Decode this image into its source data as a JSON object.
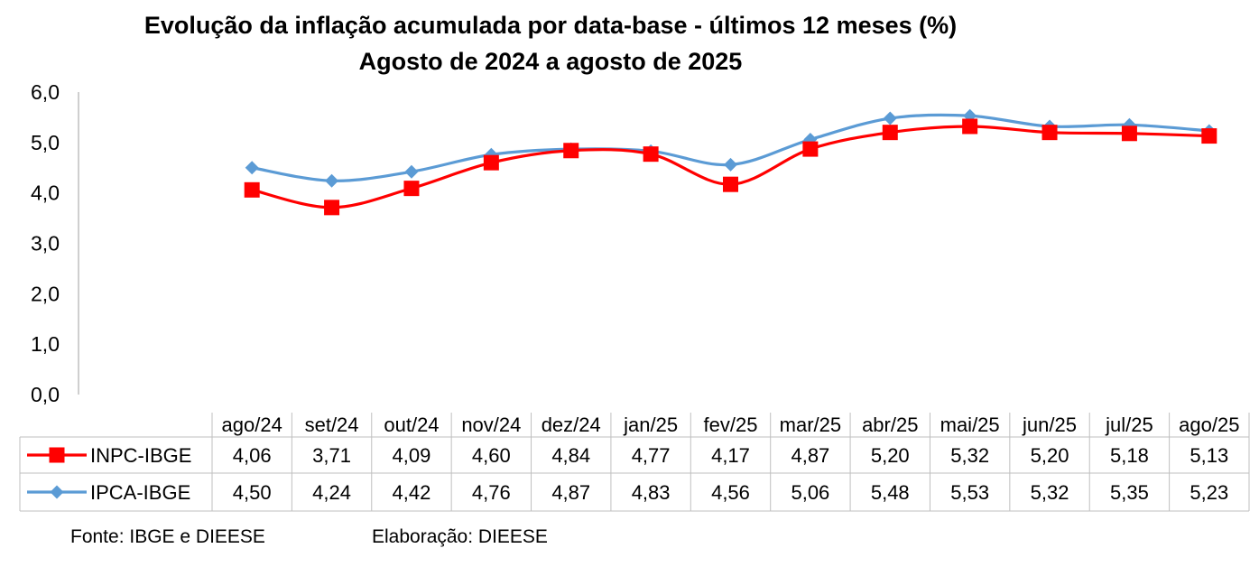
{
  "title": "Evolução da inflação acumulada por data-base - últimos 12 meses (%)",
  "subtitle": "Agosto de 2024 a agosto de 2025",
  "footer": {
    "source": "Fonte: IBGE e DIEESE",
    "elaboration": "Elaboração: DIEESE"
  },
  "chart_data": {
    "type": "line",
    "categories": [
      "ago/24",
      "set/24",
      "out/24",
      "nov/24",
      "dez/24",
      "jan/25",
      "fev/25",
      "mar/25",
      "abr/25",
      "mai/25",
      "jun/25",
      "jul/25",
      "ago/25"
    ],
    "yticks": [
      "0,0",
      "1,0",
      "2,0",
      "3,0",
      "4,0",
      "5,0",
      "6,0"
    ],
    "ylim": [
      0,
      6
    ],
    "grid": false,
    "legend": "data-table",
    "series": [
      {
        "name": "INPC-IBGE",
        "color": "#ff0000",
        "marker": "square",
        "values": [
          4.06,
          3.71,
          4.09,
          4.6,
          4.84,
          4.77,
          4.17,
          4.87,
          5.2,
          5.32,
          5.2,
          5.18,
          5.13
        ],
        "labels": [
          "4,06",
          "3,71",
          "4,09",
          "4,60",
          "4,84",
          "4,77",
          "4,17",
          "4,87",
          "5,20",
          "5,32",
          "5,20",
          "5,18",
          "5,13"
        ]
      },
      {
        "name": "IPCA-IBGE",
        "color": "#5b9bd5",
        "marker": "diamond",
        "values": [
          4.5,
          4.24,
          4.42,
          4.76,
          4.87,
          4.83,
          4.56,
          5.06,
          5.48,
          5.53,
          5.32,
          5.35,
          5.23
        ],
        "labels": [
          "4,50",
          "4,24",
          "4,42",
          "4,76",
          "4,87",
          "4,83",
          "4,56",
          "5,06",
          "5,48",
          "5,53",
          "5,32",
          "5,35",
          "5,23"
        ]
      }
    ]
  }
}
